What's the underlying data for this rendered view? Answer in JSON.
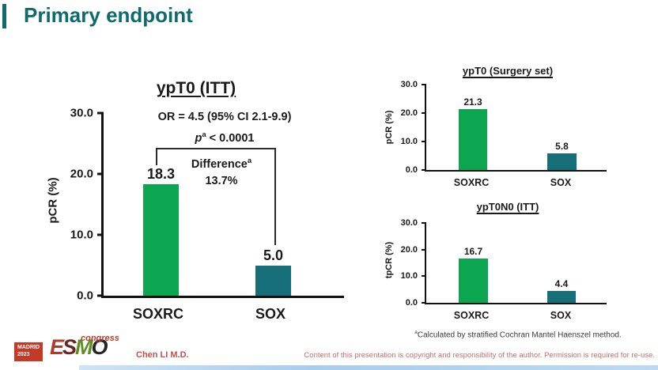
{
  "slide": {
    "title": "Primary endpoint",
    "presenter": "Chen LI M.D.",
    "copyright": "Content of this presentation is copyright and responsibility of the author. Permission is required for re-use.",
    "footnote": {
      "sup": "a",
      "text": "Calculated by stratified Cochran Mantel Haenszel method."
    },
    "logo": {
      "venue": "MADRID",
      "year": "2023",
      "event": "congress",
      "letters": [
        {
          "ch": "E",
          "color": "#B03A2A"
        },
        {
          "ch": "S",
          "color": "#6E2420"
        },
        {
          "ch": "M",
          "color": "#5E8E23"
        },
        {
          "ch": "O",
          "color": "#22262B"
        }
      ]
    }
  },
  "colors": {
    "title_teal": "#0E6B6D",
    "bar_green": "#0DA650",
    "bar_teal": "#156E78",
    "logo_red": "#C23A28",
    "presenter_red": "#C0504D",
    "copyright_red": "#C76E6A"
  },
  "chart_data": [
    {
      "type": "bar",
      "title": "ypT0 (ITT)",
      "ylabel": "pCR (%)",
      "categories": [
        "SOXRC",
        "SOX"
      ],
      "values": [
        18.3,
        5.0
      ],
      "value_labels": [
        "18.3",
        "5.0"
      ],
      "ylim": [
        0,
        30
      ],
      "yticks": [
        "30.0",
        "20.0",
        "10.0",
        "0.0"
      ],
      "grid": "off",
      "annotations": {
        "or_line": "OR = 4.5 (95% CI 2.1-9.9)",
        "p_var": "p",
        "p_sup": "a",
        "p_rest": " < 0.0001",
        "diff_label": "Difference",
        "diff_sup": "a",
        "diff_value": "13.7%"
      }
    },
    {
      "type": "bar",
      "title": "ypT0 (Surgery set)",
      "ylabel": "pCR (%)",
      "categories": [
        "SOXRC",
        "SOX"
      ],
      "values": [
        21.3,
        5.8
      ],
      "value_labels": [
        "21.3",
        "5.8"
      ],
      "ylim": [
        0,
        30
      ],
      "yticks": [
        "30.0",
        "20.0",
        "10.0",
        "0.0"
      ],
      "grid": "off"
    },
    {
      "type": "bar",
      "title": "ypT0N0 (ITT)",
      "ylabel": "tpCR (%)",
      "categories": [
        "SOXRC",
        "SOX"
      ],
      "values": [
        16.7,
        4.4
      ],
      "value_labels": [
        "16.7",
        "4.4"
      ],
      "ylim": [
        0,
        30
      ],
      "yticks": [
        "30.0",
        "20.0",
        "10.0",
        "0.0"
      ],
      "grid": "off"
    }
  ]
}
